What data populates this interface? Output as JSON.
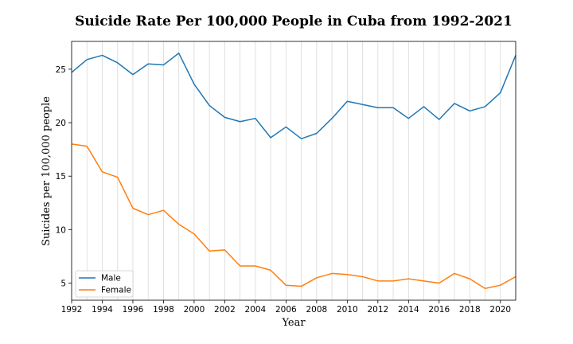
{
  "chart_data": {
    "type": "line",
    "title": "Suicide Rate Per 100,000 People in Cuba from 1992-2021",
    "xlabel": "Year",
    "ylabel": "Suicides per 100,000 people",
    "xlim": [
      1992,
      2021
    ],
    "ylim": [
      3.4,
      27.6
    ],
    "x_ticks": [
      1992,
      1994,
      1996,
      1998,
      2000,
      2002,
      2004,
      2006,
      2008,
      2010,
      2012,
      2014,
      2016,
      2018,
      2020
    ],
    "y_ticks": [
      5,
      10,
      15,
      20,
      25
    ],
    "grid": "vertical",
    "legend_position": "lower-left",
    "x": [
      1992,
      1993,
      1994,
      1995,
      1996,
      1997,
      1998,
      1999,
      2000,
      2001,
      2002,
      2003,
      2004,
      2005,
      2006,
      2007,
      2008,
      2009,
      2010,
      2011,
      2012,
      2013,
      2014,
      2015,
      2016,
      2017,
      2018,
      2019,
      2020,
      2021
    ],
    "series": [
      {
        "name": "Male",
        "color": "#1f77b4",
        "values": [
          24.7,
          25.9,
          26.3,
          25.6,
          24.5,
          25.5,
          25.4,
          26.5,
          23.6,
          21.6,
          20.5,
          20.1,
          20.4,
          18.6,
          19.6,
          18.5,
          19.0,
          20.4,
          22.0,
          21.7,
          21.4,
          21.4,
          20.4,
          21.5,
          20.3,
          21.8,
          21.1,
          21.5,
          22.8,
          26.3
        ]
      },
      {
        "name": "Female",
        "color": "#ff7f0e",
        "values": [
          18.0,
          17.8,
          15.4,
          14.9,
          12.0,
          11.4,
          11.8,
          10.5,
          9.6,
          8.0,
          8.1,
          6.6,
          6.6,
          6.2,
          4.8,
          4.7,
          5.5,
          5.9,
          5.8,
          5.6,
          5.2,
          5.2,
          5.4,
          5.2,
          5.0,
          5.9,
          5.4,
          4.5,
          4.8,
          5.6
        ]
      }
    ]
  }
}
